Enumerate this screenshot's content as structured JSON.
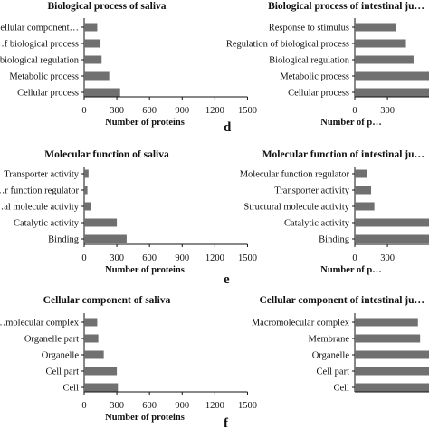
{
  "panel_labels": [
    "d",
    "e",
    "f"
  ],
  "chart_data": [
    {
      "type": "bar",
      "orientation": "horizontal",
      "title": "Biological process of saliva",
      "categories": [
        "Cellular component…",
        "…f biological process",
        "…biological regulation",
        "Metabolic process",
        "Cellular process"
      ],
      "values": [
        120,
        150,
        160,
        230,
        330
      ],
      "xlabel": "Number of proteins",
      "xticks": [
        "0",
        "300",
        "600",
        "900",
        "1200",
        "1500"
      ],
      "xlim": [
        0,
        1500
      ]
    },
    {
      "type": "bar",
      "orientation": "horizontal",
      "title": "Biological process of intestinal ju…",
      "categories": [
        "Response to stimulus",
        "Regulation of biological process",
        "Biological regulation",
        "Metabolic process",
        "Cellular process"
      ],
      "values": [
        380,
        470,
        540,
        1500,
        1500
      ],
      "xlabel": "Number of p…",
      "xticks": [
        "0",
        "300",
        "900"
      ],
      "xlim": [
        0,
        1500
      ]
    },
    {
      "type": "bar",
      "orientation": "horizontal",
      "title": "Molecular function of saliva",
      "categories": [
        "Transporter activity",
        "…r function regulator",
        "…al molecule activity",
        "Catalytic activity",
        "Binding"
      ],
      "values": [
        40,
        30,
        60,
        300,
        390
      ],
      "xlabel": "Number of proteins",
      "xticks": [
        "0",
        "300",
        "600",
        "900",
        "1200",
        "1500"
      ],
      "xlim": [
        0,
        1500
      ]
    },
    {
      "type": "bar",
      "orientation": "horizontal",
      "title": "Molecular function of intestinal ju…",
      "categories": [
        "Molecular function regulator",
        "Transporter activity",
        "Structural molecule activity",
        "Catalytic activity",
        "Binding"
      ],
      "values": [
        110,
        150,
        180,
        1500,
        1500
      ],
      "xlabel": "Number of p…",
      "xticks": [
        "0",
        "300",
        "900"
      ],
      "xlim": [
        0,
        1500
      ]
    },
    {
      "type": "bar",
      "orientation": "horizontal",
      "title": "Cellular component of saliva",
      "categories": [
        "…molecular complex",
        "Organelle part",
        "Organelle",
        "Cell part",
        "Cell"
      ],
      "values": [
        120,
        130,
        180,
        300,
        310
      ],
      "xlabel": "Number of proteins",
      "xticks": [
        "0",
        "300",
        "600",
        "900",
        "1200",
        "1500"
      ],
      "xlim": [
        0,
        1500
      ]
    },
    {
      "type": "bar",
      "orientation": "horizontal",
      "title": "Cellular component of intestinal ju…",
      "categories": [
        "Macromolecular complex",
        "Membrane",
        "Organelle",
        "Cell part",
        "Cell"
      ],
      "values": [
        580,
        600,
        1150,
        1500,
        1500
      ],
      "xlabel": "",
      "xticks": [],
      "xlim": [
        0,
        1500
      ]
    }
  ]
}
